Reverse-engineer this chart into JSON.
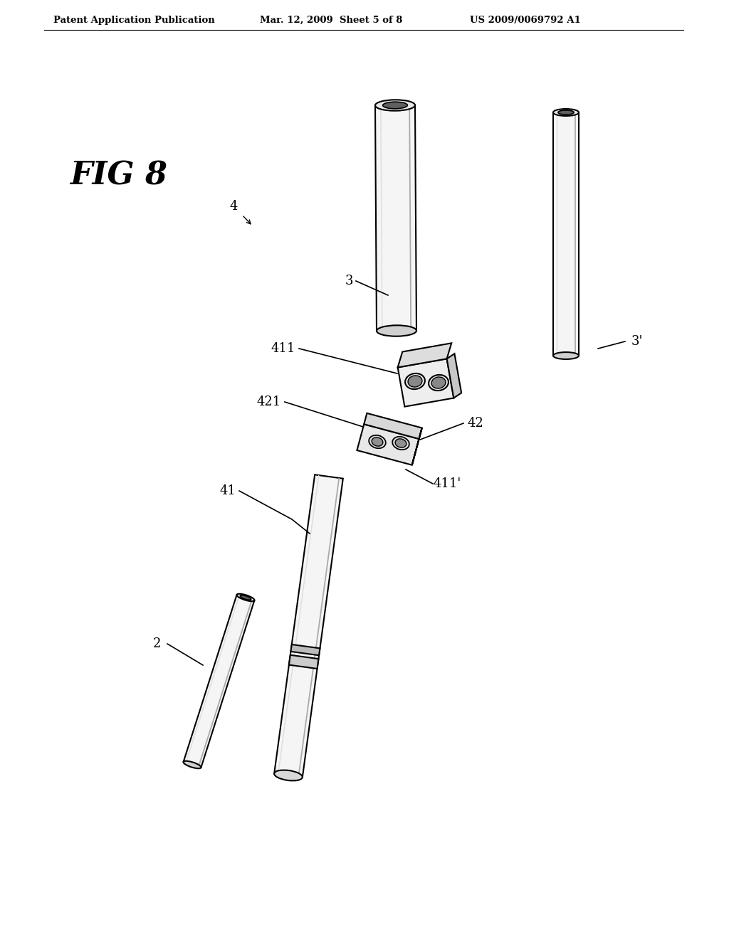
{
  "header_left": "Patent Application Publication",
  "header_mid": "Mar. 12, 2009  Sheet 5 of 8",
  "header_right": "US 2009/0069792 A1",
  "fig_label": "FIG 8",
  "bg_color": "#ffffff",
  "line_color": "#000000",
  "tube_face": "#e8e8e8",
  "tube_shadow": "#bbbbbb",
  "tube_highlight": "#f8f8f8",
  "block_face": "#e0e0e0",
  "block_side": "#b0b0b0"
}
